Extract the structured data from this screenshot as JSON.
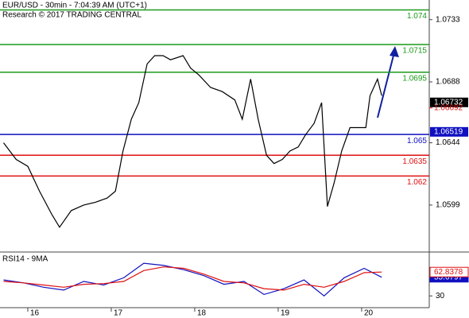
{
  "chart_data": [
    {
      "type": "line",
      "title": "EUR/USD - 30min - 7:04:39 AM (UTC+1)",
      "subtitle": "Research © 2017 TRADING CENTRAL",
      "x": [
        15.71,
        15.86,
        16.0,
        16.14,
        16.29,
        16.38,
        16.52,
        16.67,
        16.81,
        16.95,
        17.05,
        17.14,
        17.24,
        17.33,
        17.43,
        17.52,
        17.62,
        17.71,
        17.86,
        17.95,
        18.05,
        18.19,
        18.33,
        18.48,
        18.57,
        18.67,
        18.76,
        18.86,
        18.95,
        19.05,
        19.14,
        19.24,
        19.33,
        19.43,
        19.52,
        19.59,
        19.67,
        19.76,
        19.86,
        19.95,
        20.05,
        20.1,
        20.19,
        20.24
      ],
      "series": [
        {
          "name": "EUR/USD",
          "color": "#000000",
          "values": [
            1.0644,
            1.0632,
            1.0627,
            1.0609,
            1.0592,
            1.0583,
            1.0595,
            1.0599,
            1.0601,
            1.0604,
            1.0609,
            1.0638,
            1.0661,
            1.0673,
            1.0701,
            1.0707,
            1.0707,
            1.0704,
            1.0707,
            1.0698,
            1.0693,
            1.0684,
            1.0681,
            1.0675,
            1.0661,
            1.069,
            1.0661,
            1.0635,
            1.0629,
            1.0632,
            1.0638,
            1.0641,
            1.065,
            1.0658,
            1.0673,
            1.0598,
            1.0615,
            1.0638,
            1.0655,
            1.0655,
            1.0655,
            1.0678,
            1.069,
            1.0678
          ]
        }
      ],
      "levels": [
        {
          "value": 1.074,
          "color": "#1a9a1a"
        },
        {
          "value": 1.0715,
          "color": "#1a9a1a"
        },
        {
          "value": 1.0695,
          "color": "#1a9a1a"
        },
        {
          "value": 1.065,
          "color": "#1010c0"
        },
        {
          "value": 1.0635,
          "color": "#e01010"
        },
        {
          "value": 1.062,
          "color": "#e01010"
        }
      ],
      "markers": [
        {
          "value": 1.06732,
          "color": "#000000"
        },
        {
          "value": 1.06692,
          "color": "#e01010"
        },
        {
          "value": 1.06519,
          "color": "#1010c0"
        }
      ],
      "xlim": [
        15.667,
        20.81
      ],
      "xticks": [
        16,
        17,
        18,
        19,
        20
      ],
      "ylim": [
        1.05662,
        1.07472
      ],
      "yticks": [
        1.0733,
        1.0688,
        1.0644,
        1.0599
      ]
    },
    {
      "type": "line",
      "title": "RSI14 - 9MA",
      "x": [
        15.71,
        15.95,
        16.19,
        16.43,
        16.67,
        16.91,
        17.15,
        17.39,
        17.63,
        17.87,
        18.11,
        18.35,
        18.59,
        18.83,
        19.07,
        19.31,
        19.55,
        19.79,
        20.03,
        20.24
      ],
      "series": [
        {
          "name": "RSI14",
          "color": "#1010c0",
          "values": [
            52,
            48,
            42,
            38,
            50,
            45,
            55,
            75,
            72,
            66,
            58,
            46,
            50,
            32,
            40,
            52,
            30,
            55,
            68,
            55.6797
          ]
        },
        {
          "name": "9MA",
          "color": "#e01010",
          "values": [
            50,
            48,
            45,
            42,
            46,
            47,
            50,
            65,
            70,
            68,
            60,
            50,
            48,
            40,
            38,
            46,
            42,
            50,
            62,
            62.8378
          ]
        }
      ],
      "xlim": [
        15.667,
        20.81
      ],
      "ylim": [
        16,
        85
      ],
      "yticks": [
        30
      ]
    }
  ]
}
